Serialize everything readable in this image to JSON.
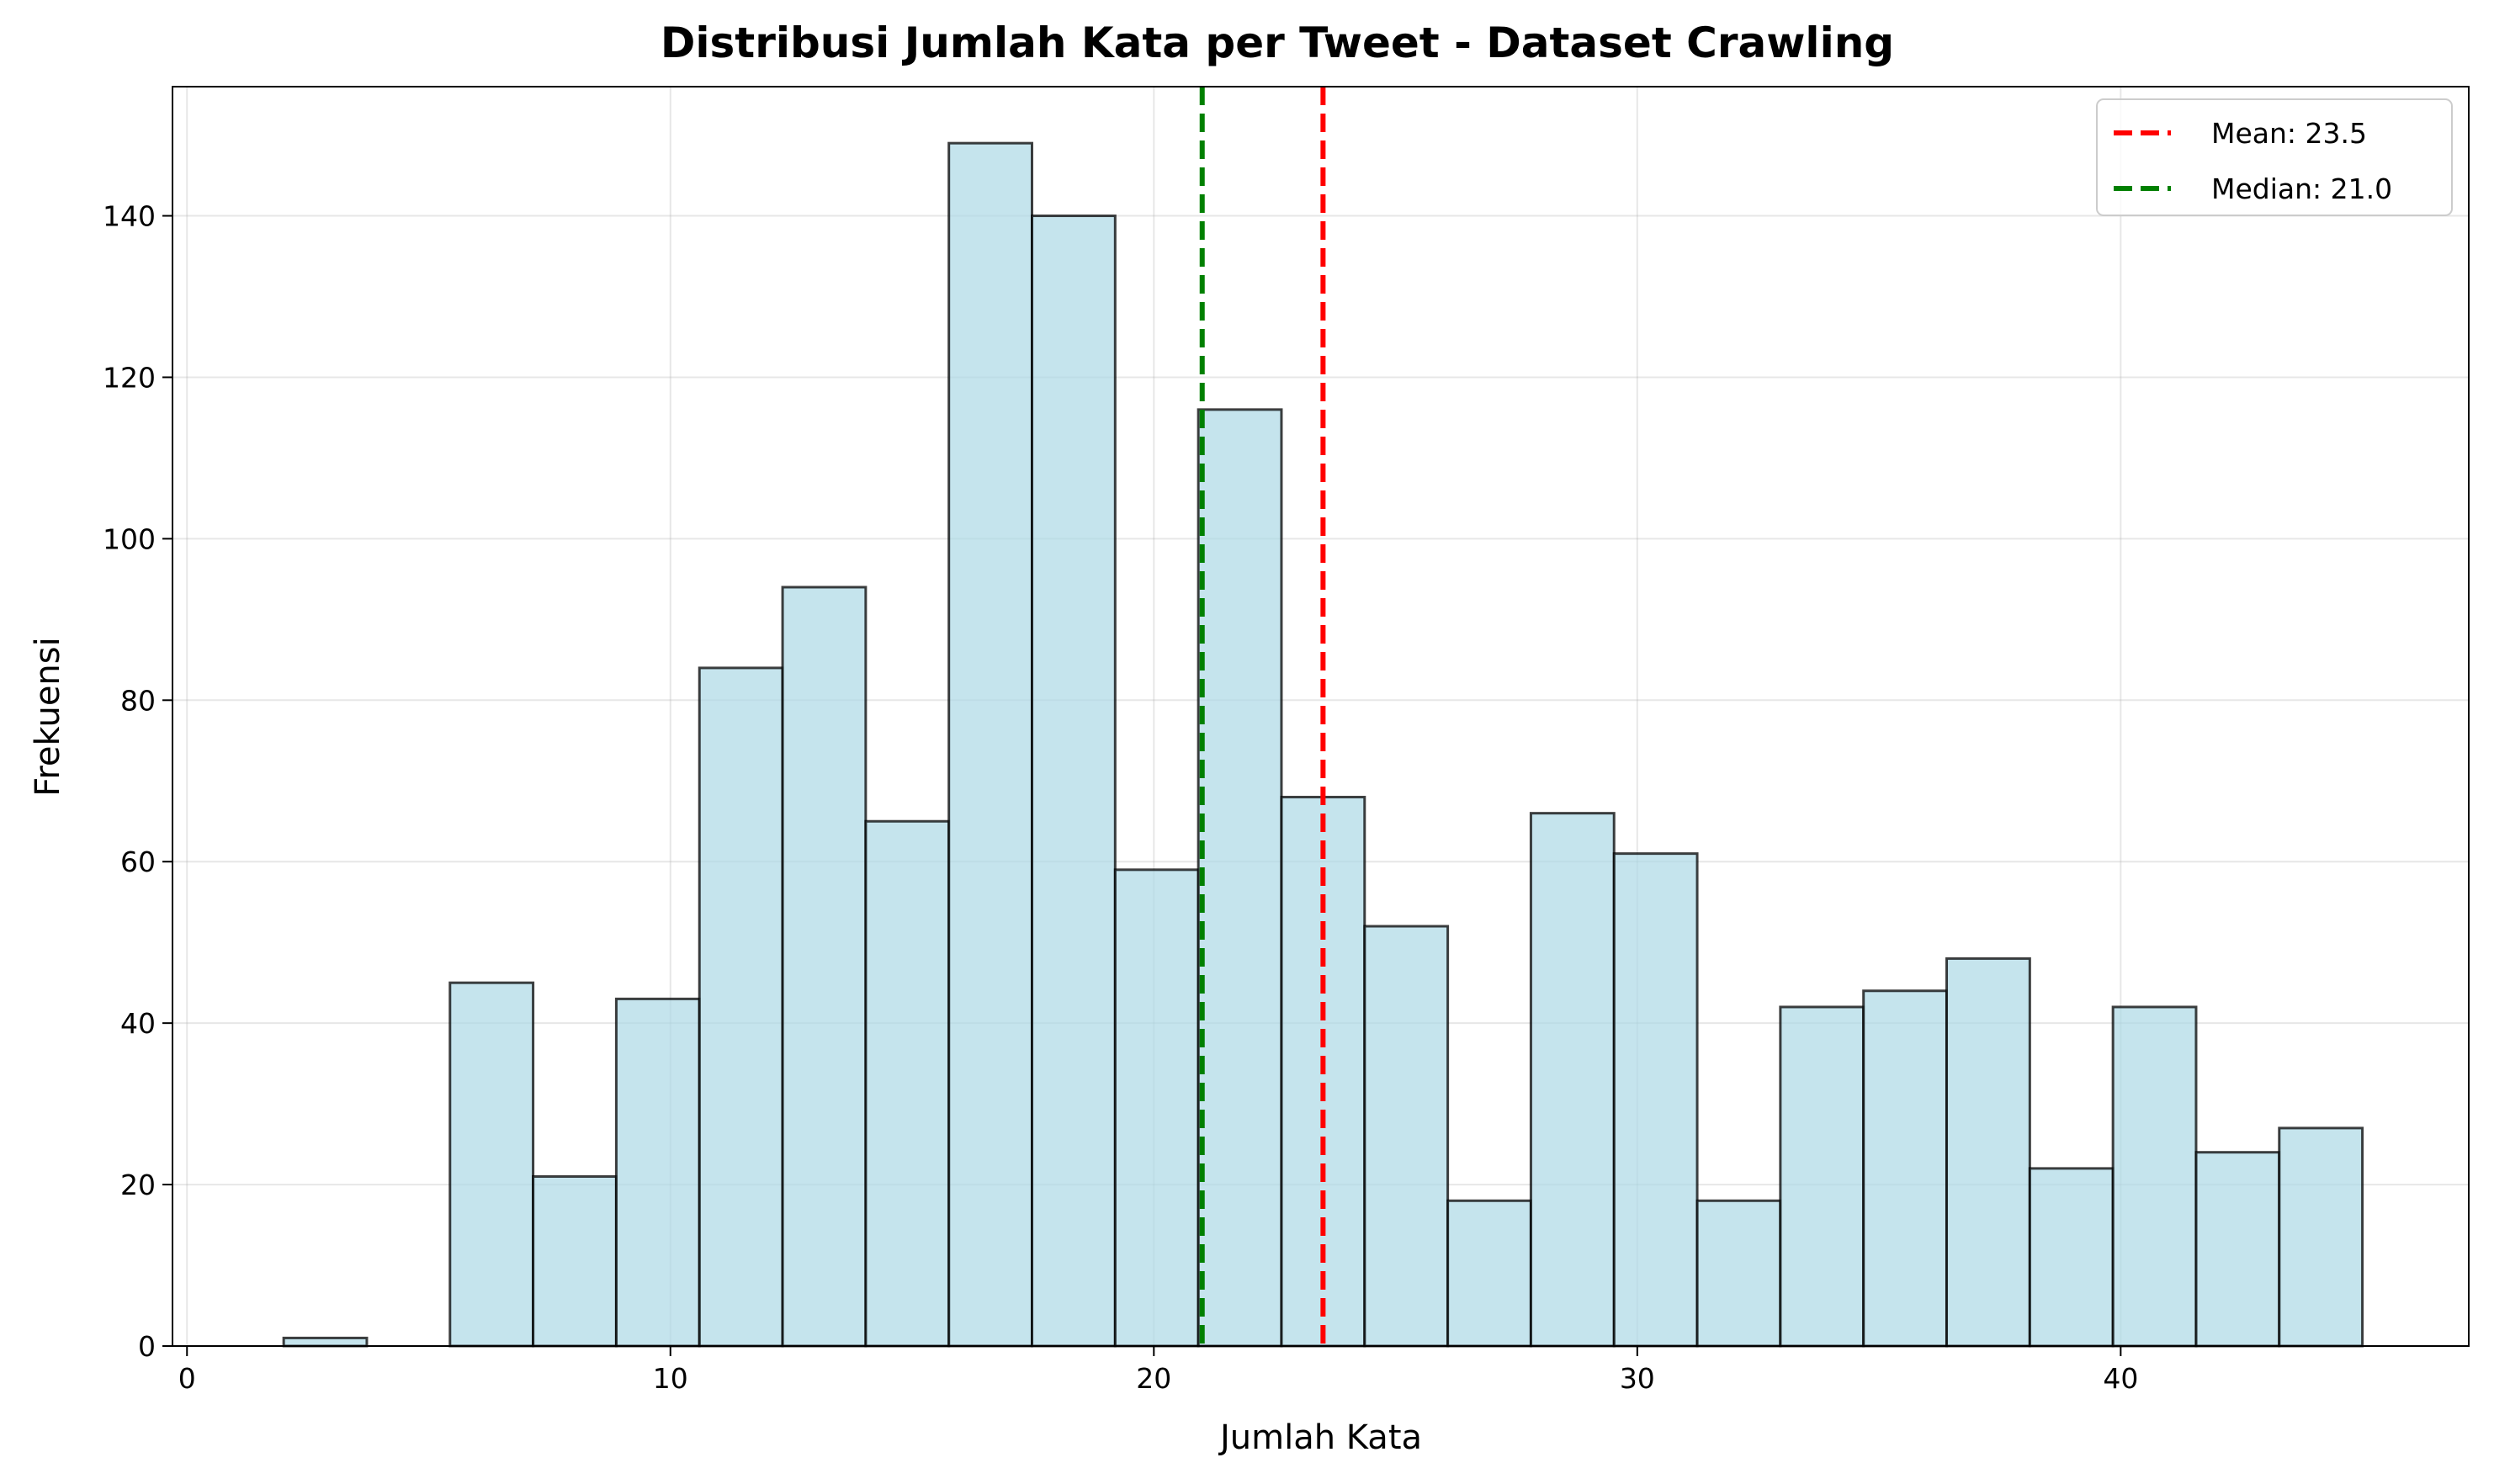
{
  "chart_data": {
    "type": "bar",
    "title": "Distribusi Jumlah Kata per Tweet - Dataset Crawling",
    "xlabel": "Jumlah Kata",
    "ylabel": "Frekuensi",
    "xlim": [
      -0.3,
      47.2
    ],
    "ylim": [
      0,
      156
    ],
    "xticks": [
      0,
      10,
      20,
      30,
      40
    ],
    "yticks": [
      0,
      20,
      40,
      60,
      80,
      100,
      120,
      140
    ],
    "grid": true,
    "legend_position": "top-right",
    "bin_start": 2,
    "bin_width": 1.72,
    "bins": [
      {
        "x0": 2.0,
        "x1": 3.72,
        "count": 1
      },
      {
        "x0": 3.72,
        "x1": 5.44,
        "count": 0
      },
      {
        "x0": 5.44,
        "x1": 7.16,
        "count": 45
      },
      {
        "x0": 7.16,
        "x1": 8.88,
        "count": 21
      },
      {
        "x0": 8.88,
        "x1": 10.6,
        "count": 43
      },
      {
        "x0": 10.6,
        "x1": 12.32,
        "count": 84
      },
      {
        "x0": 12.32,
        "x1": 14.04,
        "count": 94
      },
      {
        "x0": 14.04,
        "x1": 15.76,
        "count": 65
      },
      {
        "x0": 15.76,
        "x1": 17.48,
        "count": 149
      },
      {
        "x0": 17.48,
        "x1": 19.2,
        "count": 140
      },
      {
        "x0": 19.2,
        "x1": 20.92,
        "count": 59
      },
      {
        "x0": 20.92,
        "x1": 22.64,
        "count": 116
      },
      {
        "x0": 22.64,
        "x1": 24.36,
        "count": 68
      },
      {
        "x0": 24.36,
        "x1": 26.08,
        "count": 52
      },
      {
        "x0": 26.08,
        "x1": 27.8,
        "count": 18
      },
      {
        "x0": 27.8,
        "x1": 29.52,
        "count": 66
      },
      {
        "x0": 29.52,
        "x1": 31.24,
        "count": 61
      },
      {
        "x0": 31.24,
        "x1": 32.96,
        "count": 18
      },
      {
        "x0": 32.96,
        "x1": 34.68,
        "count": 42
      },
      {
        "x0": 34.68,
        "x1": 36.4,
        "count": 44
      },
      {
        "x0": 36.4,
        "x1": 38.12,
        "count": 48
      },
      {
        "x0": 38.12,
        "x1": 39.84,
        "count": 22
      },
      {
        "x0": 39.84,
        "x1": 41.56,
        "count": 42
      },
      {
        "x0": 41.56,
        "x1": 43.28,
        "count": 24
      },
      {
        "x0": 43.28,
        "x1": 45.0,
        "count": 27
      }
    ],
    "bar_color": "#add8e6",
    "bar_edge_color": "#000000",
    "reference_lines": [
      {
        "name": "Mean: 23.5",
        "x": 23.5,
        "color": "#ff0000",
        "style": "dashed"
      },
      {
        "name": "Median: 21.0",
        "x": 21.0,
        "color": "#008000",
        "style": "dashed"
      }
    ]
  }
}
